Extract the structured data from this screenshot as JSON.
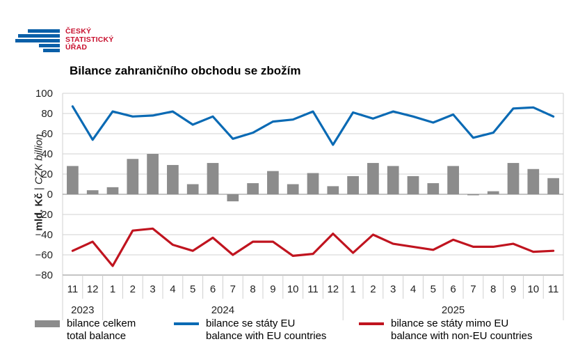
{
  "logo": {
    "lines": [
      "ČESKÝ",
      "STATISTICKÝ",
      "ÚŘAD"
    ]
  },
  "title": "Bilance zahraničního obchodu se zbožím",
  "ylabel": {
    "bold": "mld. Kč",
    "sep": " | ",
    "italic": "CZK billion"
  },
  "colors": {
    "bar": "#8c8c8c",
    "eu": "#0a6ab4",
    "noneu": "#c0141f",
    "grid": "#d0d0d0",
    "axis": "#8a8a8a"
  },
  "legend": [
    {
      "kind": "bar",
      "color": "#8c8c8c",
      "label_cz": "bilance celkem",
      "label_en": "total balance"
    },
    {
      "kind": "line",
      "color": "#0a6ab4",
      "label_cz": "bilance se státy EU",
      "label_en": "balance with EU countries"
    },
    {
      "kind": "line",
      "color": "#c0141f",
      "label_cz": "bilance se státy mimo EU",
      "label_en": "balance with non-EU countries"
    }
  ],
  "chart_data": {
    "type": "bar+line",
    "categories": [
      "11",
      "12",
      "1",
      "2",
      "3",
      "4",
      "5",
      "6",
      "7",
      "8",
      "9",
      "10",
      "11",
      "12",
      "1",
      "2",
      "3",
      "4",
      "5",
      "6",
      "7",
      "8",
      "9",
      "10",
      "11"
    ],
    "years": [
      {
        "label": "2023",
        "start": 0,
        "count": 2
      },
      {
        "label": "2024",
        "start": 2,
        "count": 12
      },
      {
        "label": "2025",
        "start": 14,
        "count": 11
      }
    ],
    "ylim": [
      -80,
      100
    ],
    "yticks": [
      -80,
      -60,
      -40,
      -20,
      0,
      20,
      40,
      60,
      80,
      100
    ],
    "ytick_labels": [
      "−80",
      "−60",
      "−40",
      "−20",
      "0",
      "20",
      "40",
      "60",
      "80",
      "100"
    ],
    "series": [
      {
        "name": "bilance celkem / total balance",
        "type": "bar",
        "values": [
          28,
          4,
          7,
          35,
          40,
          29,
          10,
          31,
          -7,
          11,
          23,
          10,
          21,
          8,
          18,
          31,
          28,
          18,
          11,
          28,
          -1,
          3,
          31,
          25,
          16
        ]
      },
      {
        "name": "bilance se státy EU / balance with EU countries",
        "type": "line",
        "values": [
          87,
          54,
          82,
          77,
          78,
          82,
          69,
          77,
          55,
          61,
          72,
          74,
          82,
          49,
          81,
          75,
          82,
          77,
          71,
          79,
          56,
          61,
          85,
          86,
          77
        ]
      },
      {
        "name": "bilance se státy mimo EU / balance with non-EU countries",
        "type": "line",
        "values": [
          -56,
          -47,
          -71,
          -36,
          -34,
          -50,
          -56,
          -43,
          -60,
          -47,
          -47,
          -61,
          -59,
          -39,
          -58,
          -40,
          -49,
          -52,
          -55,
          -45,
          -52,
          -52,
          -49,
          -57,
          -56
        ]
      }
    ]
  }
}
